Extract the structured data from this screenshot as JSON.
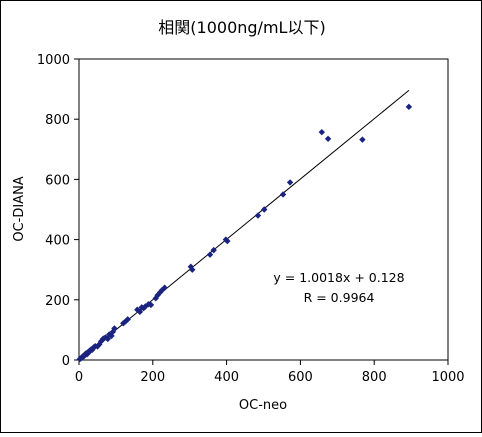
{
  "chart_data": {
    "type": "scatter",
    "title": "相関(1000ng/mL以下)",
    "xlabel": "OC-neo",
    "ylabel": "OC-DIANA",
    "xlim": [
      0,
      1000
    ],
    "ylim": [
      0,
      1000
    ],
    "xticks": [
      "0",
      "200",
      "400",
      "600",
      "800",
      "1000"
    ],
    "yticks": [
      "0",
      "200",
      "400",
      "600",
      "800",
      "1000"
    ],
    "grid": false,
    "marker_color": "#1a237e",
    "trendline": {
      "slope": 1.0018,
      "intercept": 0.128,
      "x_range": [
        0,
        894
      ]
    },
    "annotation": [
      "y = 1.0018x + 0.128",
      "R = 0.9964"
    ],
    "series": [
      {
        "points": [
          [
            2,
            3
          ],
          [
            4,
            5
          ],
          [
            6,
            6
          ],
          [
            8,
            9
          ],
          [
            10,
            11
          ],
          [
            12,
            14
          ],
          [
            14,
            13
          ],
          [
            16,
            18
          ],
          [
            18,
            21
          ],
          [
            20,
            22
          ],
          [
            22,
            19
          ],
          [
            24,
            25
          ],
          [
            26,
            28
          ],
          [
            28,
            27
          ],
          [
            30,
            32
          ],
          [
            33,
            35
          ],
          [
            36,
            34
          ],
          [
            40,
            42
          ],
          [
            44,
            46
          ],
          [
            50,
            45
          ],
          [
            55,
            52
          ],
          [
            60,
            62
          ],
          [
            65,
            70
          ],
          [
            68,
            72
          ],
          [
            72,
            75
          ],
          [
            78,
            70
          ],
          [
            82,
            85
          ],
          [
            88,
            80
          ],
          [
            92,
            94
          ],
          [
            96,
            105
          ],
          [
            120,
            122
          ],
          [
            126,
            128
          ],
          [
            132,
            135
          ],
          [
            158,
            167
          ],
          [
            165,
            160
          ],
          [
            170,
            175
          ],
          [
            175,
            172
          ],
          [
            180,
            178
          ],
          [
            188,
            185
          ],
          [
            195,
            183
          ],
          [
            208,
            205
          ],
          [
            213,
            215
          ],
          [
            220,
            225
          ],
          [
            225,
            232
          ],
          [
            232,
            240
          ],
          [
            303,
            310
          ],
          [
            307,
            300
          ],
          [
            355,
            350
          ],
          [
            365,
            365
          ],
          [
            398,
            400
          ],
          [
            402,
            395
          ],
          [
            485,
            480
          ],
          [
            502,
            500
          ],
          [
            553,
            550
          ],
          [
            572,
            590
          ],
          [
            658,
            757
          ],
          [
            675,
            735
          ],
          [
            768,
            732
          ],
          [
            894,
            841
          ]
        ]
      }
    ]
  }
}
